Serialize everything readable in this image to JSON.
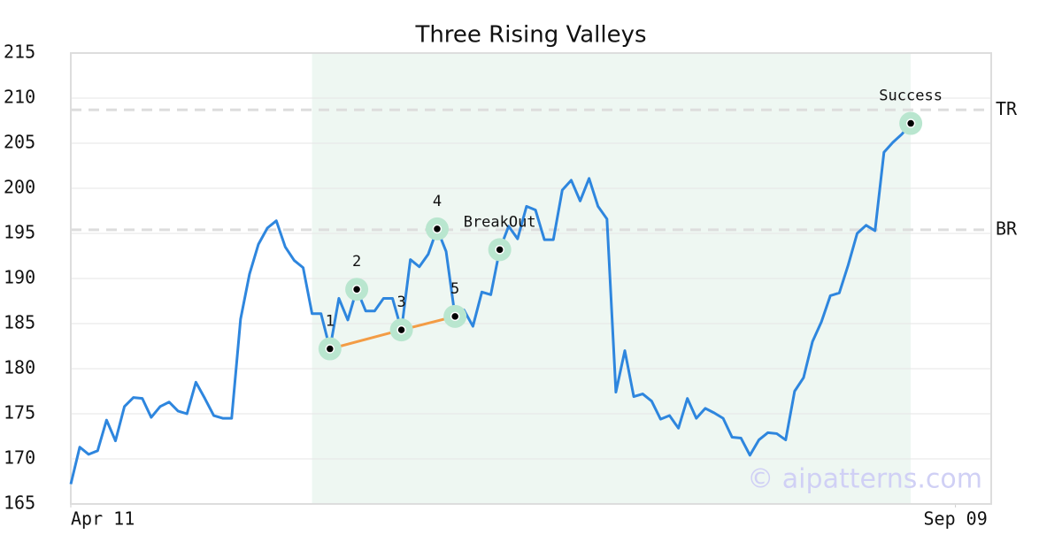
{
  "chart_data": {
    "type": "line",
    "title": "Three Rising Valleys",
    "x": [
      0,
      1,
      2,
      3,
      4,
      5,
      6,
      7,
      8,
      9,
      10,
      11,
      12,
      13,
      14,
      15,
      16,
      17,
      18,
      19,
      20,
      21,
      22,
      23,
      24,
      25,
      26,
      27,
      28,
      29,
      30,
      31,
      32,
      33,
      34,
      35,
      36,
      37,
      38,
      39,
      40,
      41,
      42,
      43,
      44,
      45,
      46,
      47,
      48,
      49,
      50,
      51,
      52,
      53,
      54,
      55,
      56,
      57,
      58,
      59,
      60,
      61,
      62,
      63,
      64,
      65,
      66,
      67,
      68,
      69,
      70,
      71,
      72,
      73,
      74,
      75,
      76,
      77,
      78,
      79,
      80,
      81,
      82,
      83,
      84,
      85,
      86,
      87,
      88,
      89,
      90,
      91,
      92,
      93,
      94,
      95
    ],
    "values": [
      167.2,
      171.3,
      170.5,
      170.9,
      174.3,
      172,
      175.8,
      176.8,
      176.7,
      174.6,
      175.8,
      176.3,
      175.3,
      175,
      178.5,
      176.7,
      174.8,
      174.5,
      174.5,
      185.5,
      190.5,
      193.8,
      195.6,
      196.4,
      193.5,
      192,
      191.2,
      186.1,
      186.1,
      182.2,
      187.8,
      185.4,
      188.8,
      186.4,
      186.4,
      187.8,
      187.8,
      184.3,
      192.1,
      191.3,
      192.7,
      195.5,
      193,
      185.8,
      186.5,
      184.7,
      188.5,
      188.2,
      193.2,
      195.8,
      194.4,
      198,
      197.6,
      194.3,
      194.3,
      199.8,
      200.9,
      198.6,
      201.1,
      198,
      196.6,
      177.4,
      182,
      176.9,
      177.2,
      176.4,
      174.4,
      174.8,
      173.4,
      176.7,
      174.5,
      175.6,
      175.1,
      174.5,
      172.4,
      172.3,
      170.4,
      172.1,
      172.9,
      172.8,
      172.1,
      177.5,
      179,
      183,
      185.2,
      188.1,
      188.4,
      191.5,
      195,
      195.9,
      195.3,
      204,
      205.1,
      206,
      207.2,
      207.6
    ],
    "color": "#2e86de",
    "xlim": [
      0,
      103
    ],
    "xticks": [
      {
        "value": 0,
        "label": "Apr 11"
      },
      {
        "value": 99,
        "label": "Sep 09"
      }
    ],
    "ylim": [
      165,
      215
    ],
    "yticks": [
      165,
      170,
      175,
      180,
      185,
      190,
      195,
      200,
      205,
      210,
      215
    ],
    "grid": true,
    "highlight": [
      27,
      94
    ],
    "highlight_color": "#eef7f2",
    "levels": [
      {
        "label": "TR",
        "value": 208.7
      },
      {
        "label": "BR",
        "value": 195.4
      }
    ],
    "annotations": [
      {
        "label": "1",
        "x": 29,
        "y": 182.2
      },
      {
        "label": "2",
        "x": 32,
        "y": 188.8
      },
      {
        "label": "3",
        "x": 37,
        "y": 184.3
      },
      {
        "label": "4",
        "x": 41,
        "y": 195.5
      },
      {
        "label": "5",
        "x": 43,
        "y": 185.8
      },
      {
        "label": "BreakOut",
        "x": 48,
        "y": 193.2
      },
      {
        "label": "Success",
        "x": 94,
        "y": 207.2
      }
    ],
    "trendline": {
      "color": "#f39c45",
      "x": [
        29,
        37,
        43
      ],
      "y": [
        182.2,
        184.3,
        185.8
      ]
    },
    "watermark": "© aipatterns.com"
  }
}
